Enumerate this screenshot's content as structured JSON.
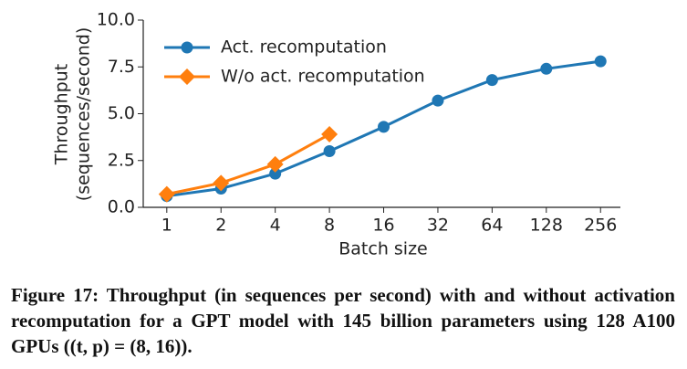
{
  "chart_data": {
    "type": "line",
    "ylabel": [
      "Throughput",
      "(sequences/second)"
    ],
    "xlabel": "Batch size",
    "x": [
      1,
      2,
      4,
      8,
      16,
      32,
      64,
      128,
      256
    ],
    "xscale": "log",
    "xlim": [
      0.74,
      330
    ],
    "xticks": [
      1,
      2,
      4,
      8,
      16,
      32,
      64,
      128,
      256
    ],
    "ylim": [
      0,
      10
    ],
    "yticks": [
      {
        "value": 0,
        "label": "0.0"
      },
      {
        "value": 2.5,
        "label": "2.5"
      },
      {
        "value": 5,
        "label": "5.0"
      },
      {
        "value": 7.5,
        "label": "7.5"
      },
      {
        "value": 10,
        "label": "10.0"
      }
    ],
    "legend": "upper left",
    "series": [
      {
        "name": "Act. recomputation",
        "color": "#1f77b4",
        "marker": "circle",
        "values": [
          0.6,
          1.0,
          1.8,
          3.0,
          4.3,
          5.7,
          6.8,
          7.4,
          7.8
        ]
      },
      {
        "name": "W/o act. recomputation",
        "color": "#ff7f0e",
        "marker": "diamond",
        "values": [
          0.7,
          1.3,
          2.3,
          3.9,
          null,
          null,
          null,
          null,
          null
        ]
      }
    ]
  },
  "caption": "Figure 17: Throughput (in sequences per second) with and without activation recomputation for a GPT model with 145 billion parameters using 128 A100 GPUs ((t, p) = (8, 16))."
}
